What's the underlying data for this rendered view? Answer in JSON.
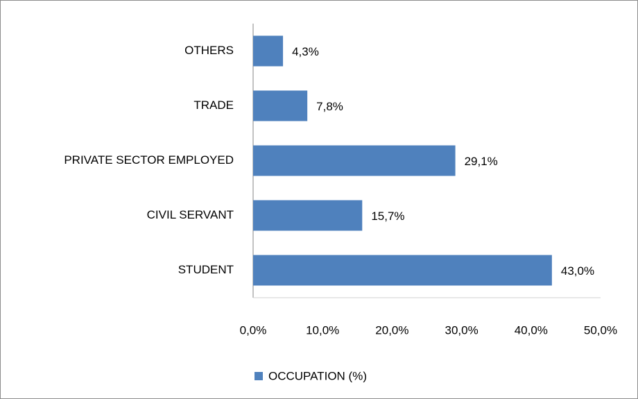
{
  "chart_data": {
    "type": "bar",
    "orientation": "horizontal",
    "categories": [
      "OTHERS",
      "TRADE",
      "PRIVATE SECTOR EMPLOYED",
      "CIVIL SERVANT",
      "STUDENT"
    ],
    "series": [
      {
        "name": "OCCUPATION (%)",
        "color": "#4f81bd",
        "values": [
          4.3,
          7.8,
          29.1,
          15.7,
          43.0
        ],
        "value_labels": [
          "4,3%",
          "7,8%",
          "29,1%",
          "15,7%",
          "43,0%"
        ]
      }
    ],
    "xlim": [
      0,
      50
    ],
    "xticks": [
      {
        "value": 0,
        "label": "0,0%"
      },
      {
        "value": 10,
        "label": "10,0%"
      },
      {
        "value": 20,
        "label": "20,0%"
      },
      {
        "value": 30,
        "label": "30,0%"
      },
      {
        "value": 40,
        "label": "40,0%"
      },
      {
        "value": 50,
        "label": "50,0%"
      }
    ],
    "grid": false,
    "legend": "bottom"
  }
}
